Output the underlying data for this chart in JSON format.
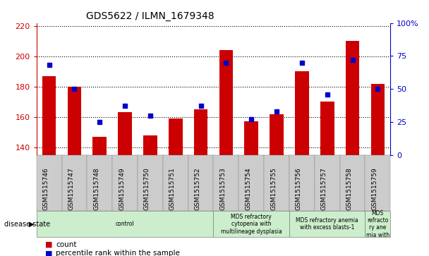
{
  "title": "GDS5622 / ILMN_1679348",
  "samples": [
    "GSM1515746",
    "GSM1515747",
    "GSM1515748",
    "GSM1515749",
    "GSM1515750",
    "GSM1515751",
    "GSM1515752",
    "GSM1515753",
    "GSM1515754",
    "GSM1515755",
    "GSM1515756",
    "GSM1515757",
    "GSM1515758",
    "GSM1515759"
  ],
  "counts": [
    187,
    180,
    147,
    163,
    148,
    159,
    165,
    204,
    157,
    162,
    190,
    170,
    210,
    182
  ],
  "percentiles": [
    68,
    50,
    25,
    37,
    30,
    null,
    37,
    70,
    27,
    33,
    70,
    46,
    72,
    50
  ],
  "ylim_left": [
    135,
    222
  ],
  "ylim_right": [
    0,
    100
  ],
  "yticks_left": [
    140,
    160,
    180,
    200,
    220
  ],
  "yticks_right": [
    0,
    25,
    50,
    75,
    100
  ],
  "bar_color": "#cc0000",
  "dot_color": "#0000cc",
  "bar_bottom": 135,
  "disease_groups": [
    {
      "label": "control",
      "start": 0,
      "end": 7
    },
    {
      "label": "MDS refractory\ncytopenia with\nmultilineage dysplasia",
      "start": 7,
      "end": 10
    },
    {
      "label": "MDS refractory anemia\nwith excess blasts-1",
      "start": 10,
      "end": 13
    },
    {
      "label": "MDS\nrefracto\nry ane\nmia with",
      "start": 13,
      "end": 14
    }
  ],
  "tick_label_color_left": "#cc0000",
  "tick_label_color_right": "#0000cc",
  "background_color": "#ffffff",
  "green_color": "#cceecc",
  "gray_color": "#cccccc",
  "legend_count_label": "count",
  "legend_pct_label": "percentile rank within the sample",
  "disease_state_label": "disease state"
}
